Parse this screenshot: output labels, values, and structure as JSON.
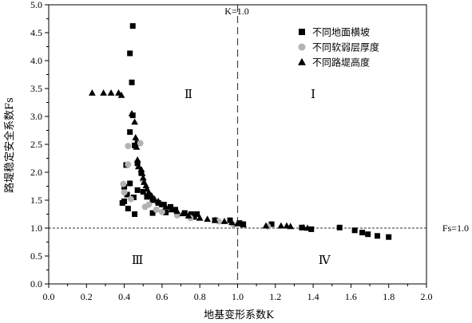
{
  "chart_data": {
    "type": "scatter",
    "xlabel": "地基变形系数K",
    "ylabel": "路堤稳定安全系数Fs",
    "xlim": [
      0.0,
      2.0
    ],
    "ylim": [
      0.0,
      5.0
    ],
    "xticks": [
      "0.0",
      "0.2",
      "0.4",
      "0.6",
      "0.8",
      "1.0",
      "1.2",
      "1.4",
      "1.6",
      "1.8",
      "2.0"
    ],
    "yticks": [
      "0.0",
      "0.5",
      "1.0",
      "1.5",
      "2.0",
      "2.5",
      "3.0",
      "3.5",
      "4.0",
      "4.5",
      "5.0"
    ],
    "grid": false,
    "legend_position": "top-right",
    "reference_lines": [
      {
        "orientation": "vertical",
        "value": 1.0,
        "label": "K=1.0",
        "style": "dashed"
      },
      {
        "orientation": "horizontal",
        "value": 1.0,
        "label": "Fs=1.0",
        "style": "dotted"
      }
    ],
    "regions": [
      {
        "label": "Ⅰ",
        "x": 1.4,
        "y": 3.4
      },
      {
        "label": "Ⅱ",
        "x": 0.74,
        "y": 3.4
      },
      {
        "label": "Ⅲ",
        "x": 0.47,
        "y": 0.43
      },
      {
        "label": "Ⅳ",
        "x": 1.46,
        "y": 0.43
      }
    ],
    "series": [
      {
        "name": "不同地面横坡",
        "marker": "square",
        "color": "#000000",
        "points": [
          [
            0.445,
            4.62
          ],
          [
            0.43,
            4.13
          ],
          [
            0.44,
            3.61
          ],
          [
            0.445,
            3.02
          ],
          [
            0.43,
            2.72
          ],
          [
            0.47,
            2.52
          ],
          [
            0.455,
            2.48
          ],
          [
            0.47,
            2.16
          ],
          [
            0.41,
            2.13
          ],
          [
            0.49,
            1.99
          ],
          [
            0.43,
            1.8
          ],
          [
            0.4,
            1.74
          ],
          [
            0.47,
            1.68
          ],
          [
            0.5,
            1.65
          ],
          [
            0.415,
            1.6
          ],
          [
            0.52,
            1.56
          ],
          [
            0.45,
            1.55
          ],
          [
            0.55,
            1.5
          ],
          [
            0.4,
            1.48
          ],
          [
            0.58,
            1.45
          ],
          [
            0.39,
            1.45
          ],
          [
            0.61,
            1.42
          ],
          [
            0.645,
            1.38
          ],
          [
            0.42,
            1.35
          ],
          [
            0.67,
            1.33
          ],
          [
            0.62,
            1.28
          ],
          [
            0.55,
            1.27
          ],
          [
            0.72,
            1.27
          ],
          [
            0.755,
            1.25
          ],
          [
            0.785,
            1.25
          ],
          [
            0.455,
            1.25
          ],
          [
            0.77,
            1.2
          ],
          [
            0.88,
            1.14
          ],
          [
            0.96,
            1.14
          ],
          [
            1.01,
            1.09
          ],
          [
            1.03,
            1.07
          ],
          [
            1.18,
            1.07
          ],
          [
            1.34,
            1.01
          ],
          [
            1.39,
            0.98
          ],
          [
            1.54,
            1.01
          ],
          [
            1.62,
            0.96
          ],
          [
            1.66,
            0.92
          ],
          [
            1.69,
            0.89
          ],
          [
            1.74,
            0.86
          ],
          [
            1.8,
            0.84
          ]
        ]
      },
      {
        "name": "不同软弱层厚度",
        "marker": "circle",
        "color": "#b3b3b3",
        "points": [
          [
            0.42,
            2.47
          ],
          [
            0.485,
            2.52
          ],
          [
            0.42,
            2.14
          ],
          [
            0.5,
            1.85
          ],
          [
            0.395,
            1.79
          ],
          [
            0.4,
            1.64
          ],
          [
            0.435,
            1.52
          ],
          [
            0.53,
            1.42
          ],
          [
            0.51,
            1.38
          ],
          [
            0.57,
            1.33
          ],
          [
            0.6,
            1.29
          ],
          [
            0.68,
            1.23
          ],
          [
            0.75,
            1.18
          ],
          [
            0.9,
            1.12
          ],
          [
            0.98,
            1.06
          ],
          [
            1.16,
            1.03
          ]
        ]
      },
      {
        "name": "不同路堤高度",
        "marker": "triangle",
        "color": "#000000",
        "points": [
          [
            0.23,
            3.42
          ],
          [
            0.29,
            3.42
          ],
          [
            0.33,
            3.42
          ],
          [
            0.37,
            3.42
          ],
          [
            0.385,
            3.38
          ],
          [
            0.44,
            3.05
          ],
          [
            0.455,
            2.9
          ],
          [
            0.46,
            2.62
          ],
          [
            0.465,
            2.45
          ],
          [
            0.47,
            2.22
          ],
          [
            0.475,
            2.1
          ],
          [
            0.49,
            2.05
          ],
          [
            0.495,
            1.98
          ],
          [
            0.5,
            1.9
          ],
          [
            0.505,
            1.82
          ],
          [
            0.515,
            1.76
          ],
          [
            0.52,
            1.7
          ],
          [
            0.53,
            1.64
          ],
          [
            0.545,
            1.58
          ],
          [
            0.56,
            1.52
          ],
          [
            0.58,
            1.48
          ],
          [
            0.6,
            1.42
          ],
          [
            0.62,
            1.38
          ],
          [
            0.65,
            1.33
          ],
          [
            0.68,
            1.3
          ],
          [
            0.71,
            1.26
          ],
          [
            0.74,
            1.22
          ],
          [
            0.8,
            1.18
          ],
          [
            0.84,
            1.16
          ],
          [
            0.88,
            1.14
          ],
          [
            0.93,
            1.12
          ],
          [
            0.97,
            1.1
          ],
          [
            1.0,
            1.08
          ],
          [
            1.03,
            1.06
          ],
          [
            1.15,
            1.04
          ],
          [
            1.23,
            1.04
          ],
          [
            1.26,
            1.04
          ],
          [
            1.28,
            1.03
          ],
          [
            1.35,
            1.01
          ],
          [
            1.37,
            1.0
          ]
        ]
      }
    ]
  }
}
